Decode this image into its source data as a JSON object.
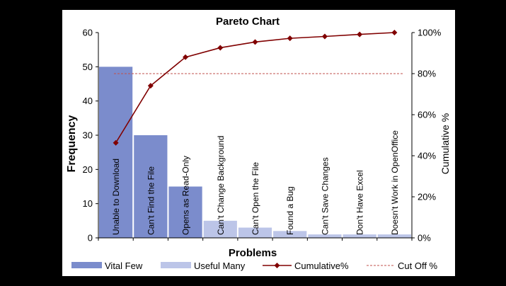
{
  "chart_data": {
    "type": "bar",
    "title": "Pareto Chart",
    "xlabel": "Problems",
    "ylabel": "Frequency",
    "y2label": "Cumulative %",
    "ylim": [
      0,
      60
    ],
    "y2lim": [
      0,
      100
    ],
    "yticks": [
      "0",
      "10",
      "20",
      "30",
      "40",
      "50",
      "60"
    ],
    "y2ticks": [
      "0%",
      "20%",
      "40%",
      "60%",
      "80%",
      "100%"
    ],
    "categories": [
      "Unable to Download",
      "Can't Find the File",
      "Opens as Read-Only",
      "Can't Change Background",
      "Can't Open the File",
      "Found a Bug",
      "Can't Save Changes",
      "Don't Have Excel",
      "Doesn't Work in OpenOffice"
    ],
    "values": [
      50,
      30,
      15,
      5,
      3,
      2,
      1,
      1,
      1
    ],
    "groups": [
      "vital",
      "vital",
      "vital",
      "useful",
      "useful",
      "useful",
      "useful",
      "useful",
      "useful"
    ],
    "cumulative": [
      46.3,
      74.1,
      88.0,
      92.6,
      95.4,
      97.2,
      98.1,
      99.1,
      100
    ],
    "cutoff": 80,
    "grid": false,
    "legend_position": "bottom",
    "legend": {
      "vital": "Vital Few",
      "useful": "Useful Many",
      "cumulative": "Cumulative%",
      "cutoff": "Cut Off %"
    },
    "colors": {
      "vital": "#7b8ccc",
      "useful": "#bcc5e8",
      "cumulative": "#800000",
      "cutoff": "#c0504d"
    }
  }
}
